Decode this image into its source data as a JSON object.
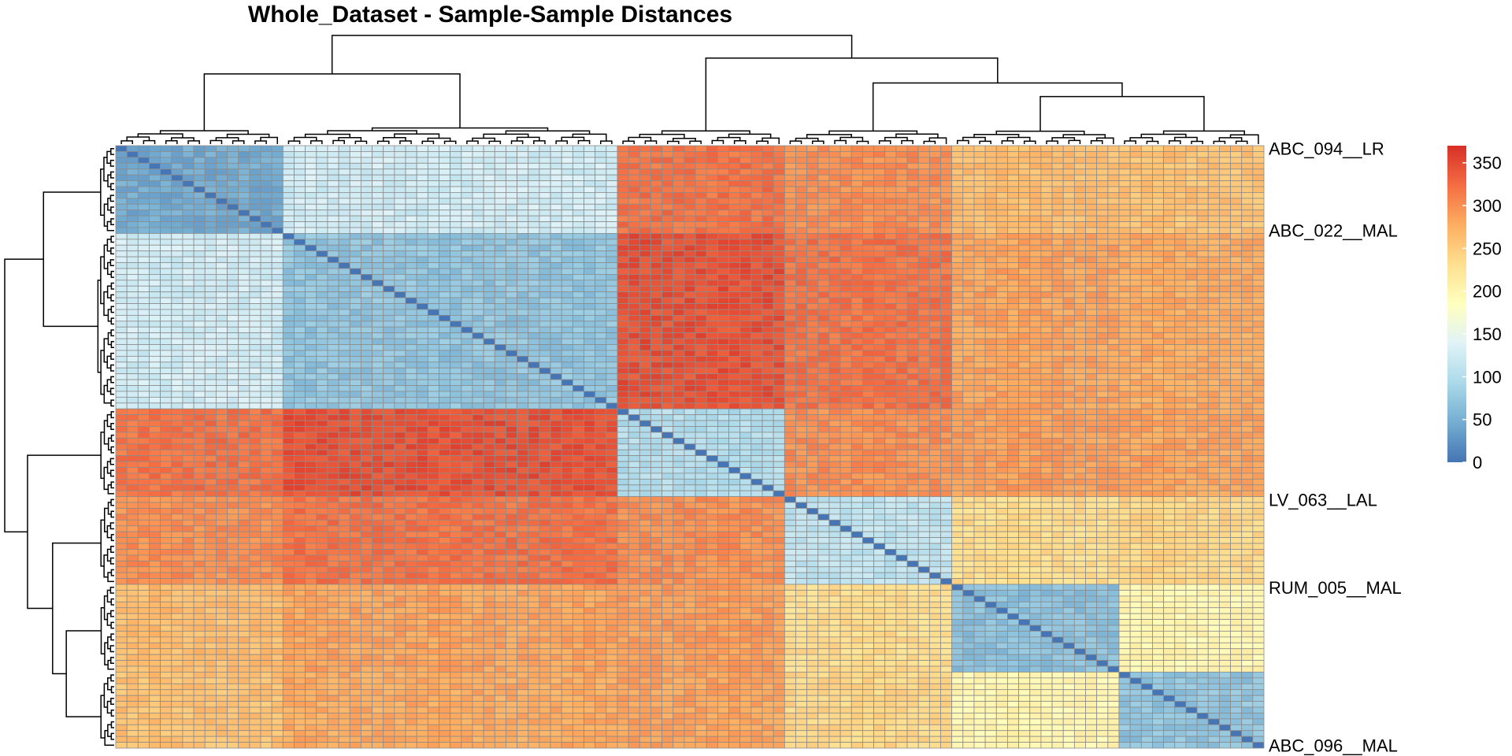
{
  "chart_data": {
    "type": "heatmap",
    "title": "Whole_Dataset - Sample-Sample Distances",
    "xlabel": "",
    "ylabel": "",
    "n_samples": 103,
    "row_labels_visible": [
      "ABC_094__LR",
      "ABC_022__MAL",
      "LV_063__LAL",
      "RUM_005__MAL",
      "ABC_096__MAL"
    ],
    "groups": [
      {
        "size": 15
      },
      {
        "size": 30
      },
      {
        "size": 15
      },
      {
        "size": 15
      },
      {
        "size": 15
      },
      {
        "size": 13
      }
    ],
    "block_distances": [
      [
        45,
        125,
        320,
        300,
        265,
        260
      ],
      [
        125,
        70,
        345,
        320,
        285,
        280
      ],
      [
        320,
        345,
        100,
        300,
        290,
        285
      ],
      [
        300,
        320,
        300,
        110,
        235,
        240
      ],
      [
        265,
        285,
        290,
        235,
        65,
        200
      ],
      [
        260,
        280,
        285,
        240,
        200,
        70
      ]
    ],
    "diagonal_value": 0,
    "legend": {
      "min": 0,
      "max": 370,
      "ticks": [
        0,
        50,
        100,
        150,
        200,
        250,
        300,
        350
      ],
      "colors": [
        "#4575b4",
        "#74add1",
        "#abd9e9",
        "#e0f3f8",
        "#ffffbf",
        "#fee090",
        "#fdae61",
        "#f46d43",
        "#d73027"
      ],
      "placement": "right"
    },
    "cell_border_color": "#8c8c8c",
    "dendrogram_color": "#000000"
  }
}
